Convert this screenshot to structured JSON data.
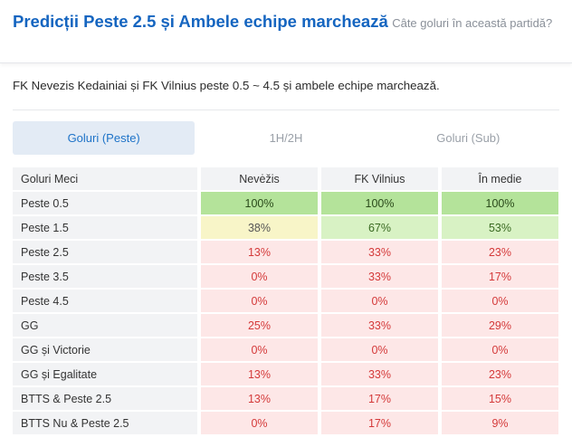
{
  "header": {
    "title": "Predicții Peste 2.5 și Ambele echipe marchează",
    "subtitle": "Câte goluri în această partidă?"
  },
  "description": "FK Nevezis Kedainiai și FK Vilnius peste 0.5 ~ 4.5 și ambele echipe marchează.",
  "tabs": [
    {
      "label": "Goluri (Peste)",
      "active": true
    },
    {
      "label": "1H/2H",
      "active": false
    },
    {
      "label": "Goluri (Sub)",
      "active": false
    }
  ],
  "table": {
    "columns": [
      "Goluri Meci",
      "Nevėžis",
      "FK Vilnius",
      "În medie"
    ],
    "rows": [
      {
        "label": "Peste 0.5",
        "values": [
          "100%",
          "100%",
          "100%"
        ],
        "colors": [
          "green",
          "green",
          "green"
        ]
      },
      {
        "label": "Peste 1.5",
        "values": [
          "38%",
          "67%",
          "53%"
        ],
        "colors": [
          "yellow",
          "lgreen",
          "lgreen"
        ]
      },
      {
        "label": "Peste 2.5",
        "values": [
          "13%",
          "33%",
          "23%"
        ],
        "colors": [
          "red",
          "red",
          "red"
        ]
      },
      {
        "label": "Peste 3.5",
        "values": [
          "0%",
          "33%",
          "17%"
        ],
        "colors": [
          "red",
          "red",
          "red"
        ]
      },
      {
        "label": "Peste 4.5",
        "values": [
          "0%",
          "0%",
          "0%"
        ],
        "colors": [
          "red",
          "red",
          "red"
        ]
      },
      {
        "label": "GG",
        "values": [
          "25%",
          "33%",
          "29%"
        ],
        "colors": [
          "red",
          "red",
          "red"
        ]
      },
      {
        "label": "GG și Victorie",
        "values": [
          "0%",
          "0%",
          "0%"
        ],
        "colors": [
          "red",
          "red",
          "red"
        ]
      },
      {
        "label": "GG și Egalitate",
        "values": [
          "13%",
          "33%",
          "23%"
        ],
        "colors": [
          "red",
          "red",
          "red"
        ]
      },
      {
        "label": "BTTS & Peste 2.5",
        "values": [
          "13%",
          "17%",
          "15%"
        ],
        "colors": [
          "red",
          "red",
          "red"
        ]
      },
      {
        "label": "BTTS Nu & Peste 2.5",
        "values": [
          "0%",
          "17%",
          "9%"
        ],
        "colors": [
          "red",
          "red",
          "red"
        ]
      }
    ]
  }
}
